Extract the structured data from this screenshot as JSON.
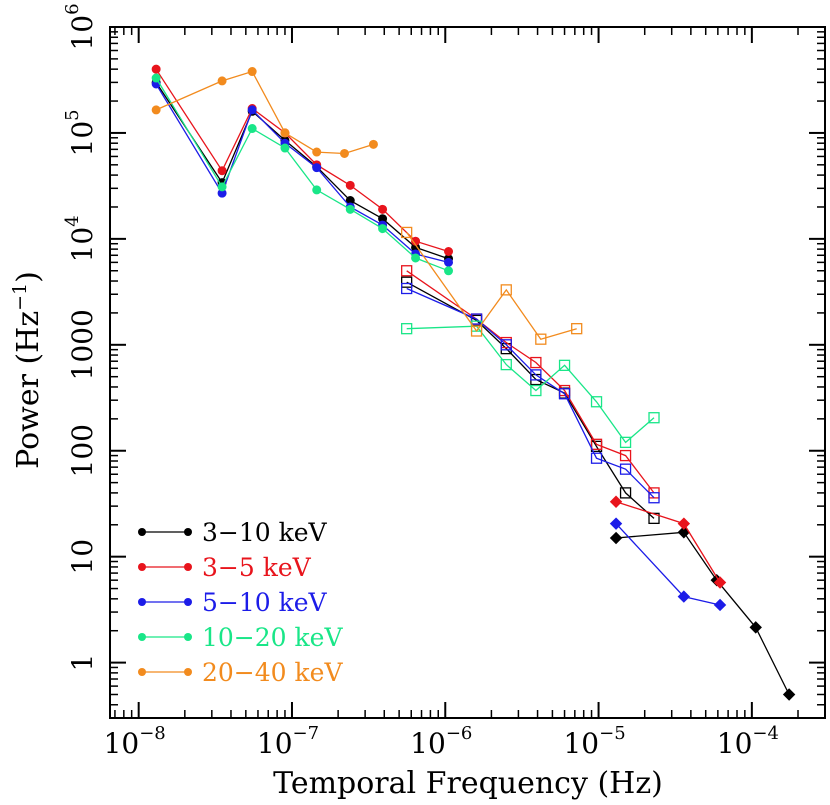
{
  "chart_data": {
    "type": "line",
    "title": "",
    "xlabel": "Temporal Frequency (Hz)",
    "ylabel": "Power (Hz",
    "ylabel_sup": "−1",
    "ylabel_close": ")",
    "xscale": "log",
    "yscale": "log",
    "xlim": [
      6.5e-09,
      0.0003
    ],
    "ylim": [
      0.3,
      1000000
    ],
    "grid": false,
    "legend_position": "bottom-left",
    "x_ticks": [
      {
        "value": 1e-08,
        "base": "10",
        "exp": "−8"
      },
      {
        "value": 1e-07,
        "base": "10",
        "exp": "−7"
      },
      {
        "value": 1e-06,
        "base": "10",
        "exp": "−6"
      },
      {
        "value": 1e-05,
        "base": "10",
        "exp": "−5"
      },
      {
        "value": 0.0001,
        "base": "10",
        "exp": "−4"
      }
    ],
    "y_ticks": [
      {
        "value": 1,
        "label": "1"
      },
      {
        "value": 10,
        "label": "10"
      },
      {
        "value": 100,
        "label": "100"
      },
      {
        "value": 1000,
        "label": "1000"
      },
      {
        "value": 10000,
        "base": "10",
        "exp": "4"
      },
      {
        "value": 100000,
        "base": "10",
        "exp": "5"
      },
      {
        "value": 1000000,
        "base": "10",
        "exp": "6"
      }
    ],
    "series": [
      {
        "name": "3−10 keV",
        "color": "#000000",
        "segments": [
          {
            "marker": "filled-circle",
            "points": [
              [
                1.3e-08,
                300000
              ],
              [
                3.5e-08,
                34000
              ],
              [
                5.5e-08,
                160000
              ],
              [
                9e-08,
                85000
              ],
              [
                1.45e-07,
                48000
              ],
              [
                2.4e-07,
                23000
              ],
              [
                3.9e-07,
                15500
              ],
              [
                6.4e-07,
                8300
              ],
              [
                1.05e-06,
                6500
              ]
            ]
          },
          {
            "marker": "open-square",
            "points": [
              [
                5.6e-07,
                3900
              ],
              [
                1.6e-06,
                1700
              ],
              [
                2.5e-06,
                920
              ],
              [
                3.9e-06,
                470
              ],
              [
                6e-06,
                350
              ],
              [
                9.7e-06,
                110
              ],
              [
                1.5e-05,
                40
              ],
              [
                2.3e-05,
                23
              ]
            ]
          },
          {
            "marker": "filled-diamond",
            "points": [
              [
                1.3e-05,
                15
              ],
              [
                3.6e-05,
                17
              ],
              [
                5.9e-05,
                6
              ],
              [
                0.000106,
                2.15
              ],
              [
                0.000175,
                0.5
              ]
            ]
          }
        ]
      },
      {
        "name": "3−5 keV",
        "color": "#e8141c",
        "segments": [
          {
            "marker": "filled-circle",
            "points": [
              [
                1.3e-08,
                400000
              ],
              [
                3.5e-08,
                44000
              ],
              [
                5.5e-08,
                170000
              ],
              [
                9e-08,
                100000
              ],
              [
                1.45e-07,
                50000
              ],
              [
                2.4e-07,
                32000
              ],
              [
                3.9e-07,
                19000
              ],
              [
                6.4e-07,
                9500
              ],
              [
                1.05e-06,
                7600
              ]
            ]
          },
          {
            "marker": "open-square",
            "points": [
              [
                5.6e-07,
                5000
              ],
              [
                1.6e-06,
                1750
              ],
              [
                2.5e-06,
                1050
              ],
              [
                3.9e-06,
                680
              ],
              [
                6e-06,
                370
              ],
              [
                9.7e-06,
                115
              ],
              [
                1.5e-05,
                90
              ],
              [
                2.3e-05,
                40
              ]
            ]
          },
          {
            "marker": "filled-diamond",
            "points": [
              [
                1.3e-05,
                33
              ],
              [
                3.6e-05,
                20.5
              ],
              [
                6.2e-05,
                5.7
              ]
            ]
          }
        ]
      },
      {
        "name": "5−10 keV",
        "color": "#1c1ce8",
        "segments": [
          {
            "marker": "filled-circle",
            "points": [
              [
                1.3e-08,
                290000
              ],
              [
                3.5e-08,
                27000
              ],
              [
                5.5e-08,
                165000
              ],
              [
                9e-08,
                80000
              ],
              [
                1.45e-07,
                47000
              ],
              [
                2.4e-07,
                20000
              ],
              [
                3.9e-07,
                13500
              ],
              [
                6.4e-07,
                7200
              ],
              [
                1.05e-06,
                6000
              ]
            ]
          },
          {
            "marker": "open-square",
            "points": [
              [
                5.6e-07,
                3400
              ],
              [
                1.6e-06,
                1750
              ],
              [
                2.5e-06,
                1000
              ],
              [
                3.9e-06,
                520
              ],
              [
                6e-06,
                345
              ],
              [
                9.7e-06,
                85
              ],
              [
                1.5e-05,
                67
              ],
              [
                2.3e-05,
                36
              ]
            ]
          },
          {
            "marker": "filled-diamond",
            "points": [
              [
                1.3e-05,
                20.5
              ],
              [
                3.6e-05,
                4.2
              ],
              [
                6.2e-05,
                3.5
              ]
            ]
          }
        ]
      },
      {
        "name": "10−20 keV",
        "color": "#19e688",
        "segments": [
          {
            "marker": "filled-circle",
            "points": [
              [
                1.3e-08,
                330000
              ],
              [
                3.5e-08,
                31000
              ],
              [
                5.5e-08,
                110000
              ],
              [
                9e-08,
                72000
              ],
              [
                1.45e-07,
                29000
              ],
              [
                2.4e-07,
                19000
              ],
              [
                3.9e-07,
                12500
              ],
              [
                6.4e-07,
                6600
              ],
              [
                1.05e-06,
                5000
              ]
            ]
          },
          {
            "marker": "open-square",
            "points": [
              [
                5.6e-07,
                1420
              ],
              [
                1.6e-06,
                1500
              ],
              [
                2.5e-06,
                650
              ],
              [
                3.9e-06,
                370
              ],
              [
                6e-06,
                640
              ],
              [
                9.7e-06,
                290
              ],
              [
                1.5e-05,
                120
              ],
              [
                2.3e-05,
                205
              ]
            ]
          }
        ]
      },
      {
        "name": "20−40 keV",
        "color": "#f28b1e",
        "segments": [
          {
            "marker": "filled-circle",
            "points": [
              [
                1.3e-08,
                165000
              ],
              [
                3.5e-08,
                310000
              ],
              [
                5.5e-08,
                380000
              ],
              [
                9e-08,
                100000
              ],
              [
                1.45e-07,
                66000
              ],
              [
                2.2e-07,
                64000
              ],
              [
                3.4e-07,
                78000
              ]
            ]
          },
          {
            "marker": "open-square",
            "points": [
              [
                5.6e-07,
                11500
              ],
              [
                1.6e-06,
                1350
              ],
              [
                2.5e-06,
                3300
              ],
              [
                4.2e-06,
                1130
              ],
              [
                7.2e-06,
                1420
              ]
            ]
          }
        ]
      }
    ]
  }
}
